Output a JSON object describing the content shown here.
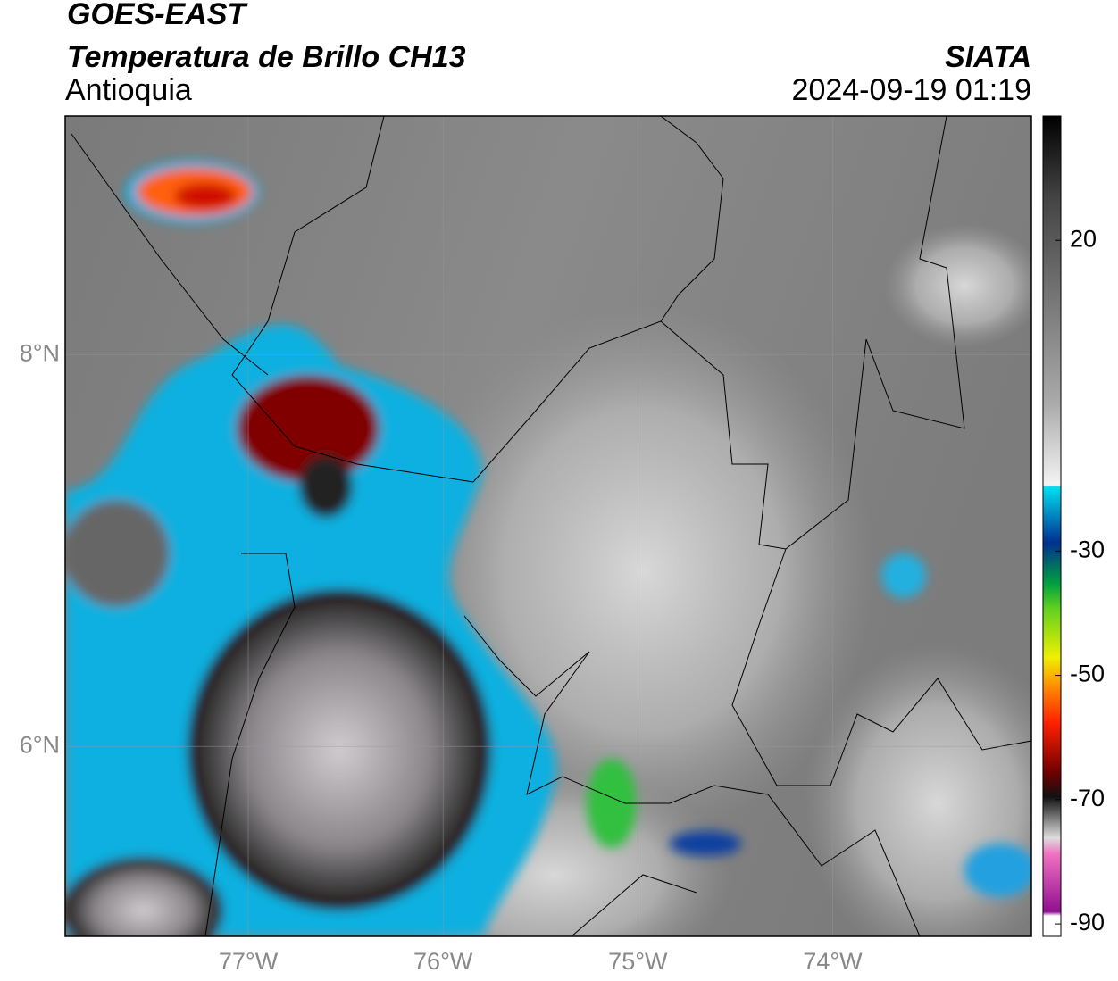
{
  "header": {
    "title": "GOES-EAST",
    "subtitle": "Temperatura de Brillo CH13",
    "region": "Antioquia",
    "source": "SIATA",
    "datetime": "2024-09-19 01:19"
  },
  "map": {
    "xlim": [
      -77.94,
      -72.98
    ],
    "ylim": [
      5.03,
      9.22
    ],
    "xticks": [
      {
        "value": -77,
        "label": "77°W"
      },
      {
        "value": -76,
        "label": "76°W"
      },
      {
        "value": -75,
        "label": "75°W"
      },
      {
        "value": -74,
        "label": "74°W"
      }
    ],
    "yticks": [
      {
        "value": 6,
        "label": "6°N"
      },
      {
        "value": 8,
        "label": "8°N"
      }
    ],
    "grid": true
  },
  "colorbar": {
    "lim": [
      -92,
      40
    ],
    "ticks": [
      -90,
      -70,
      -50,
      -30,
      20
    ]
  }
}
